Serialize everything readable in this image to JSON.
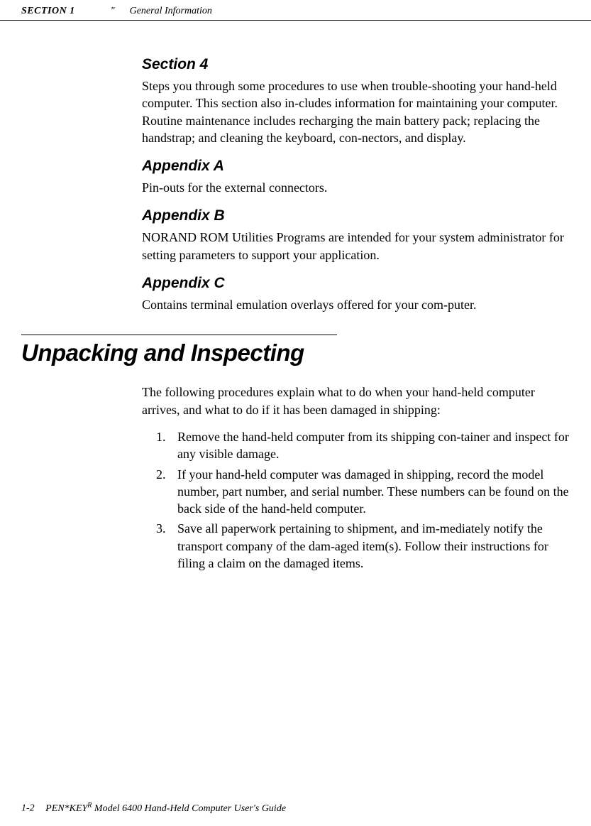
{
  "header": {
    "section_label": "SECTION 1",
    "separator": "\"",
    "title": "General Information"
  },
  "sections": {
    "section4": {
      "heading": "Section 4",
      "text": "Steps you through some procedures to use when trouble-shooting your hand-held computer.  This section also in-cludes information for maintaining your computer.  Routine maintenance includes recharging the main battery pack; replacing the handstrap; and cleaning the keyboard, con-nectors, and display."
    },
    "appendixA": {
      "heading": "Appendix A",
      "text": "Pin-outs for the external connectors."
    },
    "appendixB": {
      "heading": "Appendix B",
      "text": "NORAND ROM Utilities Programs are intended for your system administrator for setting parameters to support your application."
    },
    "appendixC": {
      "heading": "Appendix C",
      "text": "Contains terminal emulation overlays offered for your com-puter."
    }
  },
  "main": {
    "heading": "Unpacking and Inspecting",
    "intro": "The following procedures explain what to do when your hand-held computer arrives, and what to do if it has been damaged in shipping:",
    "steps": [
      {
        "num": "1.",
        "text": "Remove the hand-held computer from its shipping con-tainer and inspect for any visible damage."
      },
      {
        "num": "2.",
        "text": "If your hand-held computer was damaged in shipping, record the model number, part number, and serial number.  These numbers can be found on the back side of the hand-held computer."
      },
      {
        "num": "3.",
        "text": "Save all paperwork pertaining to shipment, and im-mediately notify the transport company of the dam-aged item(s).  Follow their instructions for filing a claim on the damaged items."
      }
    ]
  },
  "footer": {
    "page": "1-2",
    "product_prefix": "PEN*KEY",
    "product_sup": "R",
    "product_suffix": " Model 6400 Hand-Held Computer User's Guide"
  }
}
